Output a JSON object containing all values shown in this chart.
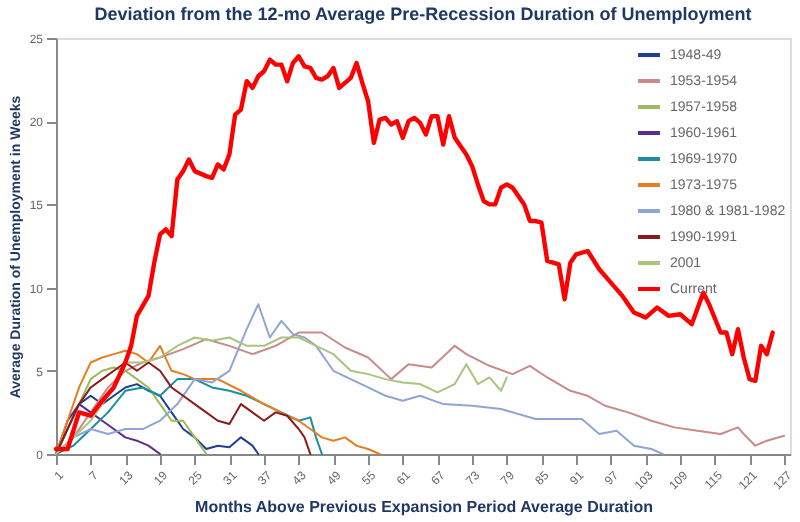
{
  "chart_data": {
    "type": "line",
    "title": "Deviation from the 12-mo Average Pre-Recession Duration of Unemployment",
    "xlabel": "Months Above Previous Expansion Period Average Duration",
    "ylabel": "Average Duration of Unemployment in Weeks",
    "xlim": [
      1,
      128
    ],
    "xticks": [
      1,
      7,
      13,
      19,
      25,
      31,
      37,
      43,
      49,
      55,
      61,
      67,
      73,
      79,
      85,
      91,
      97,
      103,
      109,
      115,
      121,
      127
    ],
    "ylim": [
      0,
      25
    ],
    "yticks": [
      0,
      5,
      10,
      15,
      20,
      25
    ],
    "grid": false,
    "legend": "top right",
    "marker": "none",
    "line_style": "solid",
    "series": [
      {
        "name": "1948-49",
        "color": "#1f3f8f",
        "x": [
          1,
          3,
          5,
          7,
          9,
          11,
          13,
          15,
          17,
          19,
          21,
          23,
          25,
          27,
          29,
          31,
          33,
          35,
          36
        ],
        "values": [
          0,
          1.5,
          3,
          3.5,
          3,
          3.5,
          4,
          4.2,
          3.8,
          3.5,
          2.5,
          1.5,
          1,
          0.3,
          0.5,
          0.4,
          1,
          0.5,
          0
        ]
      },
      {
        "name": "1953-1954",
        "color": "#c98a8a",
        "x": [
          1,
          4,
          7,
          10,
          13,
          16,
          19,
          23,
          27,
          31,
          35,
          39,
          43,
          47,
          51,
          55,
          59,
          62,
          66,
          70,
          72,
          76,
          80,
          83,
          86,
          90,
          93,
          96,
          100,
          104,
          108,
          112,
          116,
          119,
          120,
          122,
          124,
          127
        ],
        "values": [
          0,
          1,
          2.5,
          4,
          5,
          5.5,
          5.8,
          6.3,
          6.9,
          6.5,
          6,
          6.5,
          7.3,
          7.3,
          6.4,
          5.8,
          4.5,
          5.4,
          5.2,
          6.5,
          6,
          5.3,
          4.8,
          5.3,
          4.6,
          3.8,
          3.5,
          2.9,
          2.5,
          2,
          1.6,
          1.4,
          1.2,
          1.6,
          1.2,
          0.5,
          0.8,
          1.1
        ]
      },
      {
        "name": "1957-1958",
        "color": "#9bbb59",
        "x": [
          1,
          3,
          5,
          7,
          9,
          11,
          13,
          15,
          17,
          19,
          21,
          23,
          25,
          27
        ],
        "values": [
          0,
          1.5,
          3,
          4.5,
          5,
          5.2,
          5,
          4.5,
          4,
          3,
          2,
          2,
          1,
          0
        ]
      },
      {
        "name": "1960-1961",
        "color": "#5b2c8f",
        "x": [
          1,
          3,
          5,
          7,
          9,
          11,
          13,
          15,
          17,
          19
        ],
        "values": [
          0,
          2,
          3,
          2.5,
          2,
          1.5,
          1,
          0.8,
          0.5,
          0
        ]
      },
      {
        "name": "1969-1970",
        "color": "#1b8ea0",
        "x": [
          1,
          4,
          7,
          10,
          13,
          16,
          19,
          22,
          25,
          28,
          31,
          34,
          37,
          40,
          43,
          45,
          46,
          47
        ],
        "values": [
          0,
          0.5,
          1.5,
          2.5,
          3.8,
          4,
          3.5,
          4.5,
          4.5,
          4,
          3.8,
          3.5,
          3,
          2.5,
          2,
          2.2,
          1,
          0
        ]
      },
      {
        "name": "1973-1975",
        "color": "#e67e22",
        "x": [
          1,
          3,
          5,
          7,
          9,
          11,
          13,
          15,
          17,
          19,
          21,
          23,
          25,
          29,
          33,
          37,
          41,
          43,
          45,
          47,
          49,
          51,
          53,
          55,
          57
        ],
        "values": [
          0,
          2,
          4,
          5.5,
          5.8,
          6,
          6.2,
          6,
          5.5,
          6.5,
          5,
          4.8,
          4.5,
          4.5,
          3.8,
          3,
          2.3,
          2,
          1.5,
          1,
          0.8,
          1,
          0.5,
          0.3,
          0
        ]
      },
      {
        "name": "1980 & 1981-1982",
        "color": "#8ea5d5",
        "x": [
          1,
          4,
          7,
          10,
          13,
          16,
          19,
          22,
          25,
          28,
          31,
          34,
          36,
          38,
          40,
          42,
          44,
          46,
          49,
          52,
          55,
          58,
          61,
          64,
          68,
          73,
          78,
          84,
          88,
          92,
          95,
          98,
          101,
          104,
          106
        ],
        "values": [
          0,
          1,
          1.5,
          1.2,
          1.5,
          1.5,
          2,
          3,
          4.5,
          4.3,
          5,
          7.5,
          9,
          7,
          8,
          7.2,
          7,
          6.5,
          5,
          4.5,
          4,
          3.5,
          3.2,
          3.5,
          3,
          2.9,
          2.7,
          2.1,
          2.1,
          2.1,
          1.2,
          1.4,
          0.5,
          0.3,
          0
        ]
      },
      {
        "name": "1990-1991",
        "color": "#8b1a1a",
        "x": [
          1,
          3,
          5,
          7,
          9,
          11,
          13,
          15,
          17,
          19,
          21,
          23,
          25,
          27,
          29,
          31,
          33,
          35,
          37,
          39,
          41,
          43,
          44,
          45
        ],
        "values": [
          0,
          1.5,
          3,
          4,
          4.5,
          5,
          5.5,
          5,
          5.5,
          5,
          4,
          3.5,
          3,
          2.5,
          2,
          1.8,
          3,
          2.5,
          2,
          2.5,
          2.3,
          1.5,
          1,
          0
        ]
      },
      {
        "name": "2001",
        "color": "#a9c47f",
        "x": [
          1,
          4,
          7,
          10,
          13,
          16,
          19,
          22,
          25,
          28,
          31,
          34,
          37,
          40,
          43,
          46,
          49,
          52,
          55,
          58,
          61,
          64,
          67,
          70,
          72,
          74,
          76,
          78,
          79
        ],
        "values": [
          0,
          1,
          2,
          3.5,
          5.5,
          5.5,
          5.8,
          6.5,
          7,
          6.8,
          7,
          6.5,
          6.5,
          7,
          7,
          6.5,
          6,
          5,
          4.8,
          4.5,
          4.3,
          4.2,
          3.7,
          4.2,
          5.4,
          4.2,
          4.6,
          3.8,
          4.6
        ]
      },
      {
        "name": "Current",
        "color": "#ff0000",
        "x": [
          1,
          3,
          5,
          7,
          9,
          11,
          13,
          14,
          15,
          17,
          18,
          19,
          20,
          21,
          22,
          23,
          24,
          25,
          27,
          28,
          29,
          30,
          31,
          32,
          33,
          34,
          35,
          36,
          37,
          38,
          39,
          40,
          41,
          42,
          43,
          44,
          45,
          46,
          47,
          48,
          49,
          50,
          51,
          52,
          53,
          54,
          55,
          56,
          57,
          58,
          59,
          60,
          61,
          62,
          63,
          64,
          65,
          66,
          67,
          68,
          69,
          70,
          72,
          73,
          74,
          75,
          76,
          77,
          78,
          79,
          80,
          81,
          82,
          83,
          84,
          85,
          86,
          88,
          89,
          90,
          91,
          93,
          95,
          97,
          99,
          101,
          103,
          105,
          107,
          109,
          111,
          113,
          114,
          116,
          117,
          118,
          119,
          120,
          121,
          122,
          123,
          124,
          125
        ],
        "values": [
          0.3,
          0.3,
          2.5,
          2.3,
          3.2,
          4,
          5.5,
          6.5,
          8.3,
          9.5,
          11.5,
          13.2,
          13.5,
          13.1,
          16.5,
          17,
          17.7,
          17,
          16.7,
          16.6,
          17.4,
          17.1,
          18,
          20.4,
          20.7,
          22.4,
          22,
          22.7,
          23,
          23.7,
          23.4,
          23.4,
          22.4,
          23.5,
          23.9,
          23.3,
          23.2,
          22.6,
          22.5,
          22.7,
          23.2,
          22,
          22.3,
          22.6,
          23.5,
          22.3,
          21.2,
          18.7,
          20.1,
          20.2,
          19.8,
          20,
          19,
          20,
          20.2,
          19.9,
          19.2,
          20.3,
          20.3,
          18.6,
          20.3,
          19,
          18,
          17.3,
          16.2,
          15.2,
          15,
          15,
          16,
          16.2,
          16,
          15.5,
          15,
          14,
          14,
          13.9,
          11.6,
          11.4,
          9.3,
          11.5,
          12,
          12.2,
          11.1,
          10.3,
          9.5,
          8.5,
          8.2,
          8.8,
          8.3,
          8.4,
          7.8,
          9.7,
          9,
          7.3,
          7.3,
          6,
          7.5,
          5.8,
          4.5,
          4.4,
          6.5,
          6,
          7.3
        ]
      }
    ]
  }
}
